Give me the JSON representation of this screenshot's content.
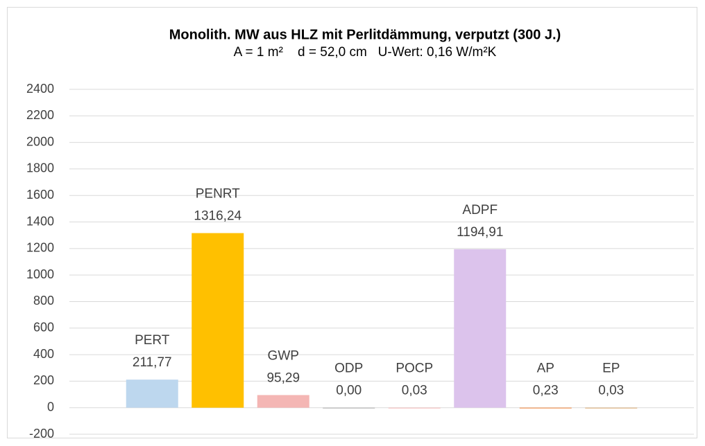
{
  "chart_data": {
    "type": "bar",
    "title": "Monolith. MW aus HLZ mit Perlitdämmung, verputzt (300 J.)",
    "subtitle": "A = 1 m²    d = 52,0 cm   U-Wert: 0,16 W/m²K",
    "categories": [
      "PERT",
      "PENRT",
      "GWP",
      "ODP",
      "POCP",
      "ADPF",
      "AP",
      "EP"
    ],
    "values": [
      211.77,
      1316.24,
      95.29,
      0.0,
      0.03,
      1194.91,
      0.23,
      0.03
    ],
    "value_labels": [
      "211,77",
      "1316,24",
      "95,29",
      "0,00",
      "0,03",
      "1194,91",
      "0,23",
      "0,03"
    ],
    "colors": [
      "#bdd7ee",
      "#ffc000",
      "#f4b6b4",
      "#a9a9a9",
      "#f4b6b4",
      "#dcc3ec",
      "#ed7d31",
      "#d9a36a"
    ],
    "ylim": [
      -200,
      2400
    ],
    "yticks": [
      -200,
      0,
      200,
      400,
      600,
      800,
      1000,
      1200,
      1400,
      1600,
      1800,
      2000,
      2200,
      2400
    ],
    "grid": true
  }
}
